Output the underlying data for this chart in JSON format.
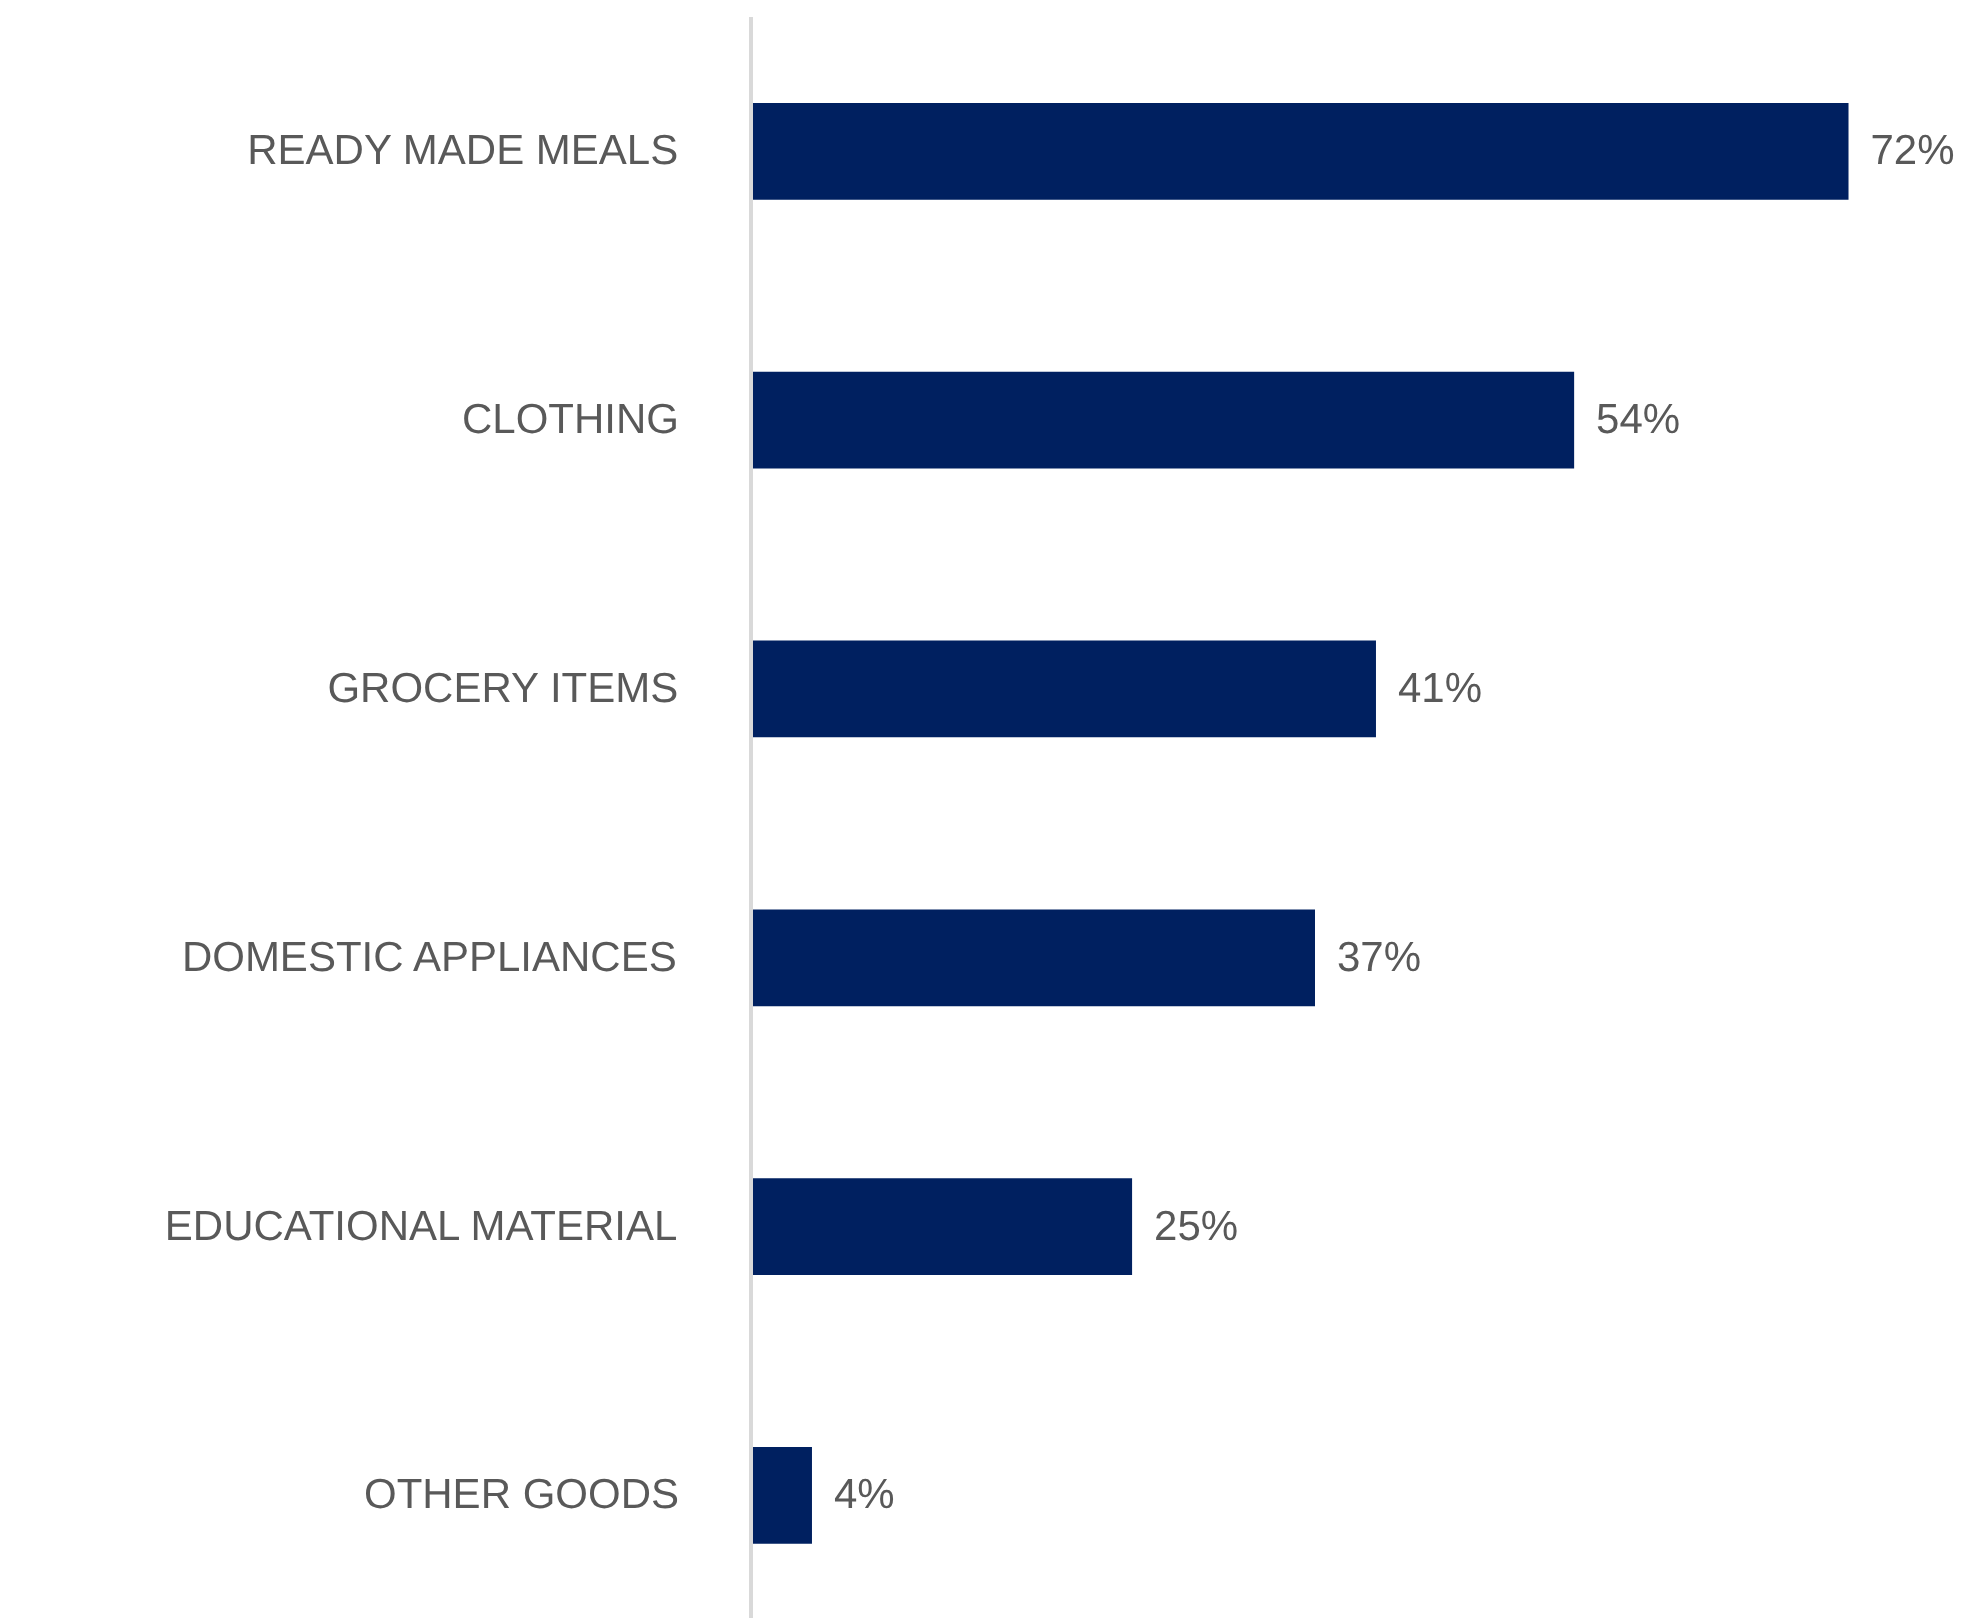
{
  "chart_data": {
    "type": "bar",
    "orientation": "horizontal",
    "categories": [
      "READY MADE MEALS",
      "CLOTHING",
      "GROCERY ITEMS",
      "DOMESTIC APPLIANCES",
      "EDUCATIONAL MATERIAL",
      "OTHER GOODS"
    ],
    "values": [
      72,
      54,
      41,
      37,
      25,
      4
    ],
    "value_labels": [
      "72%",
      "54%",
      "41%",
      "37%",
      "25%",
      "4%"
    ],
    "color": "#002060"
  }
}
